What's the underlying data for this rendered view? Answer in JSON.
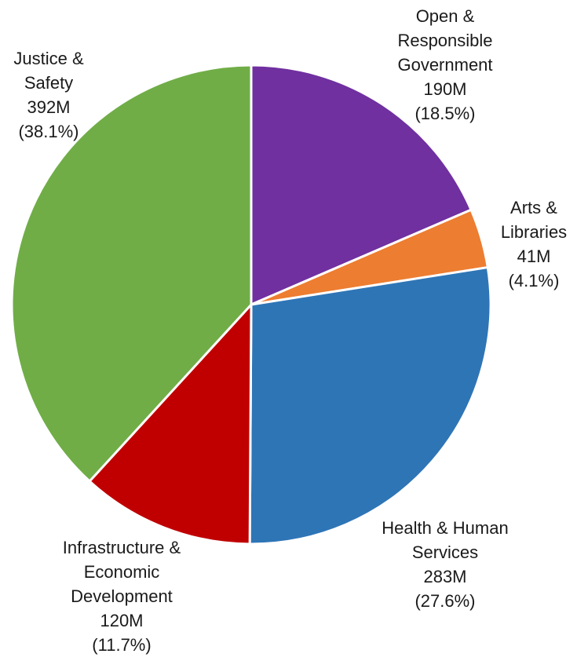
{
  "chart_data": {
    "type": "pie",
    "title": "",
    "slices": [
      {
        "name": "Open & Responsible Government",
        "label_lines": [
          "Open &",
          "Responsible",
          "Government",
          "190M",
          "(18.5%)"
        ],
        "value": 190,
        "percent": 18.5,
        "color": "#7030a0"
      },
      {
        "name": "Arts & Libraries",
        "label_lines": [
          "Arts &",
          "Libraries",
          "41M",
          "(4.1%)"
        ],
        "value": 41,
        "percent": 4.1,
        "color": "#ed7d31"
      },
      {
        "name": "Health & Human Services",
        "label_lines": [
          "Health & Human",
          "Services",
          "283M",
          "(27.6%)"
        ],
        "value": 283,
        "percent": 27.6,
        "color": "#2e75b6"
      },
      {
        "name": "Infrastructure & Economic Development",
        "label_lines": [
          "Infrastructure &",
          "Economic",
          "Development",
          "120M",
          "(11.7%)"
        ],
        "value": 120,
        "percent": 11.7,
        "color": "#c00000"
      },
      {
        "name": "Justice & Safety",
        "label_lines": [
          "Justice &",
          "Safety",
          "392M",
          "(38.1%)"
        ],
        "value": 392,
        "percent": 38.1,
        "color": "#70ad47"
      }
    ],
    "units": "M"
  }
}
